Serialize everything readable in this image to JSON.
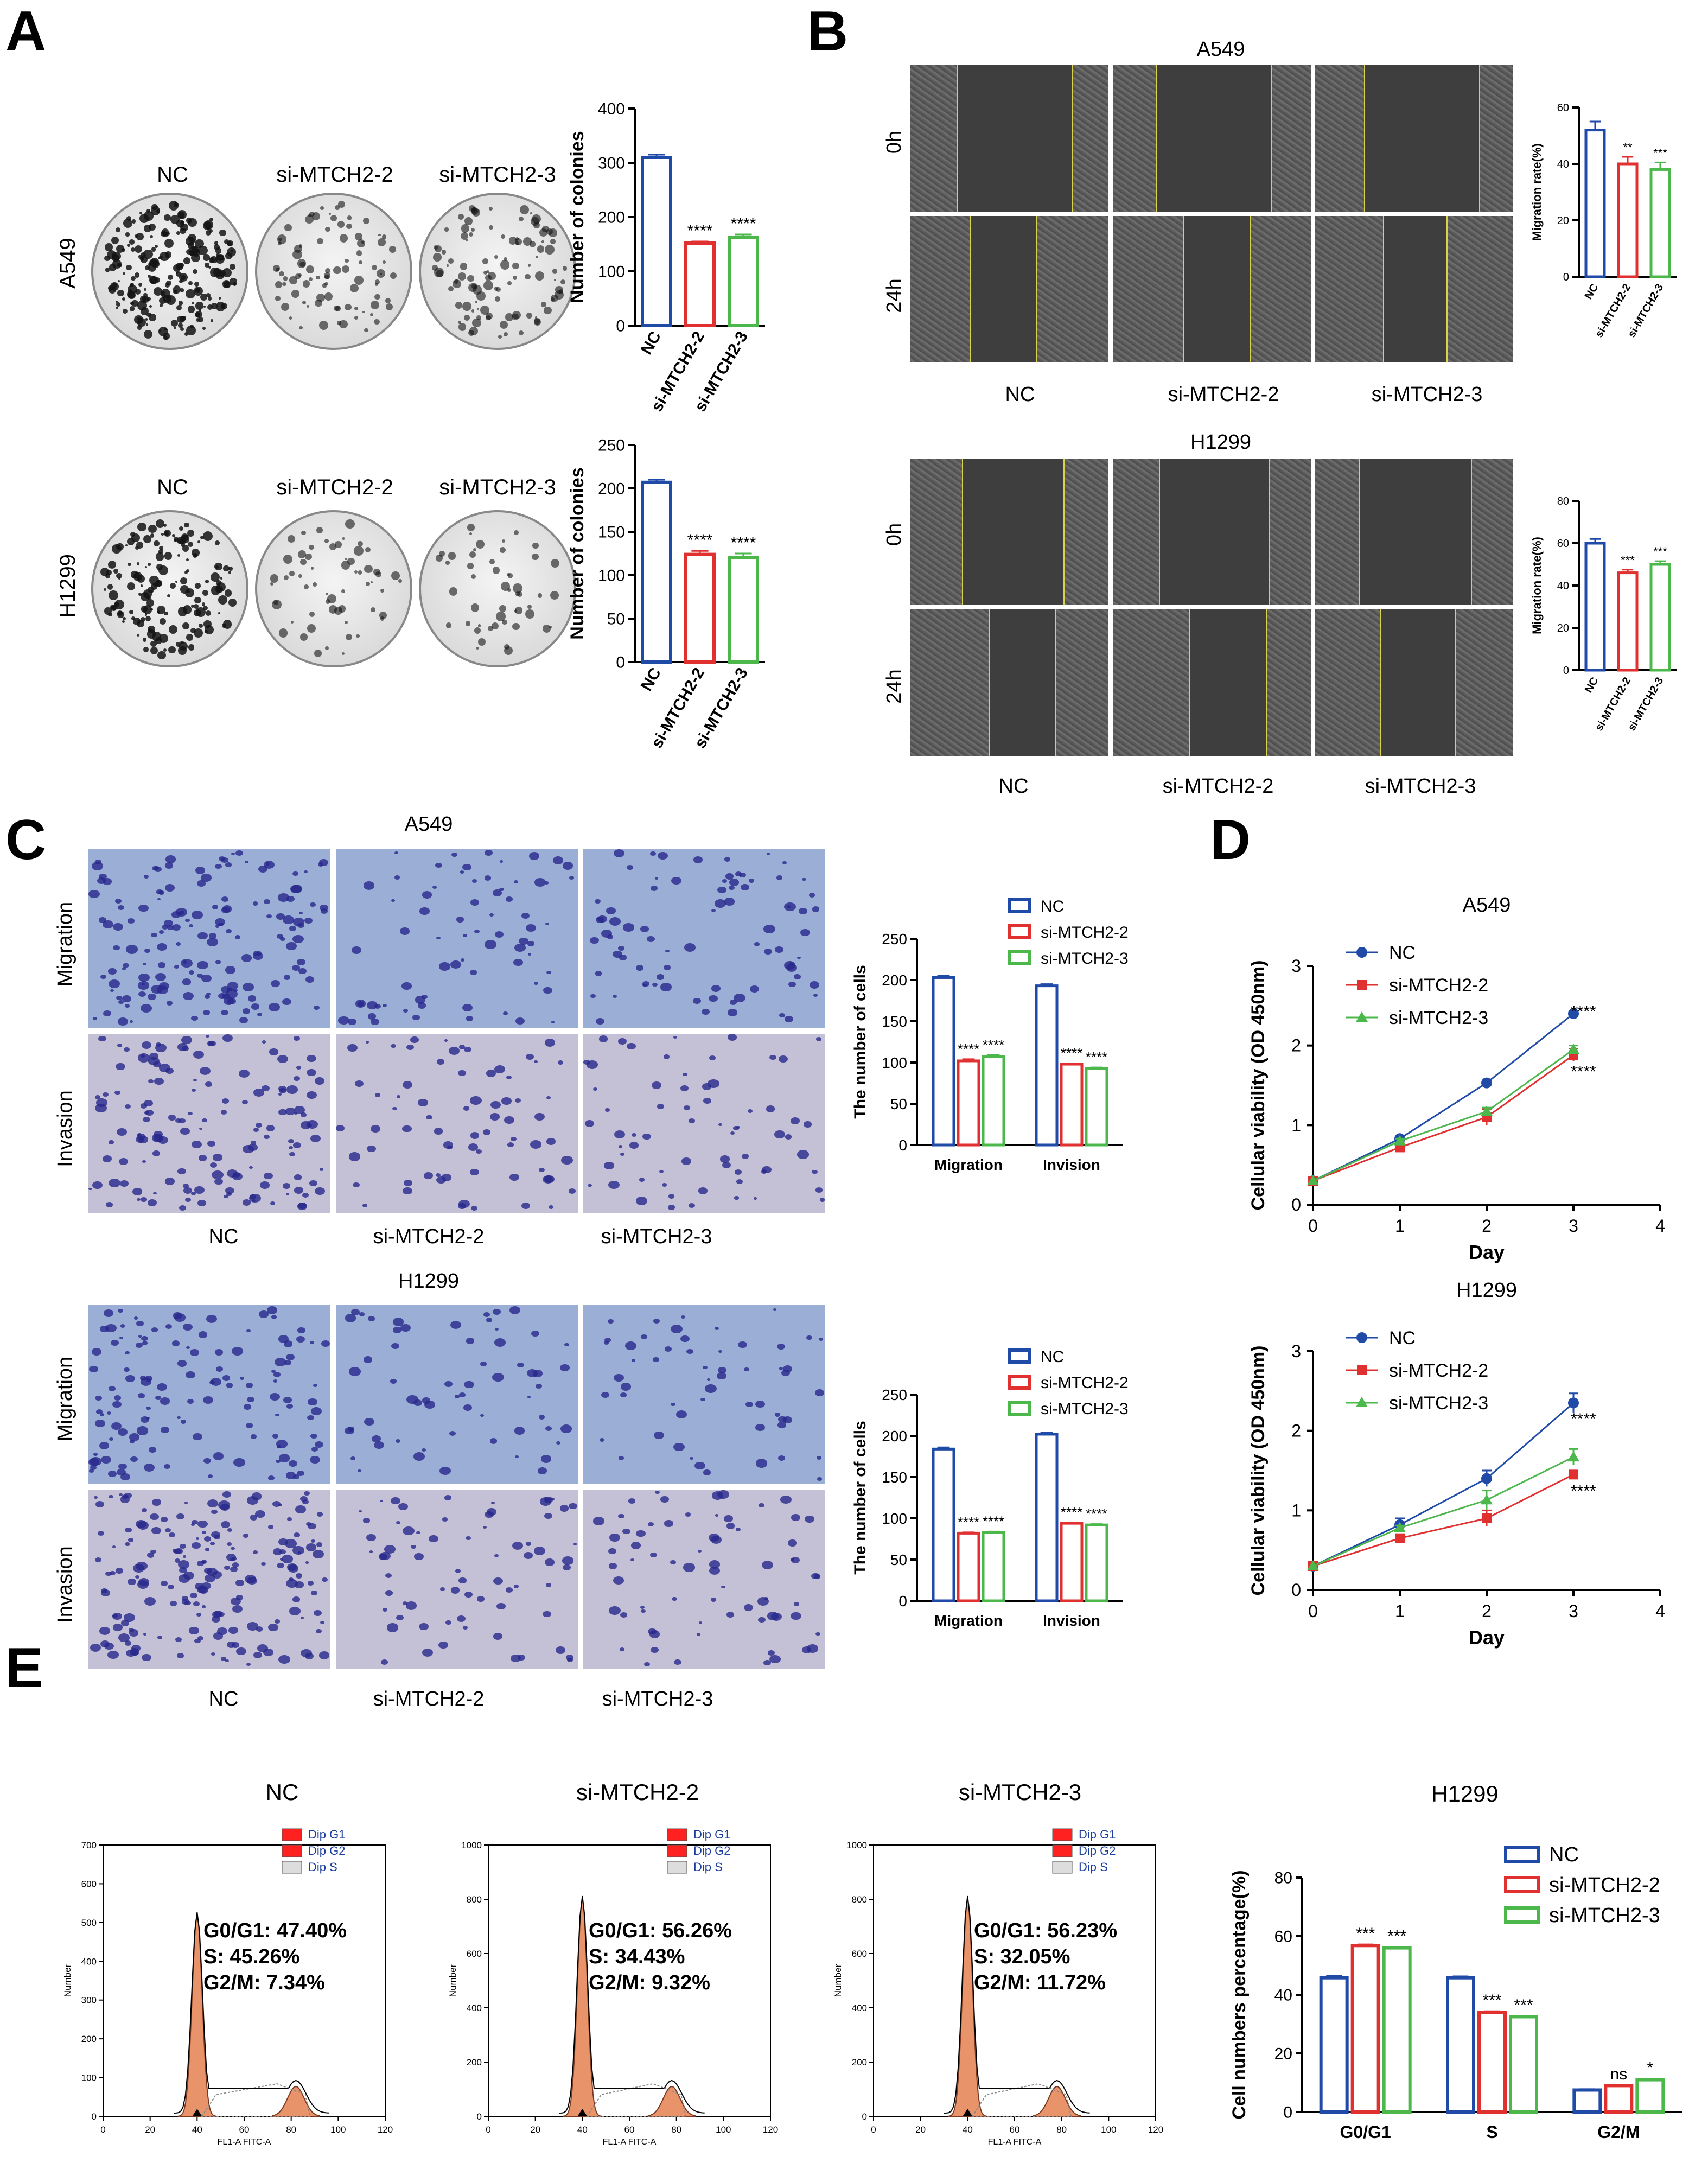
{
  "panels": {
    "A": "A",
    "B": "B",
    "C": "C",
    "D": "D",
    "E": "E"
  },
  "colors": {
    "nc": "#1f4aa8",
    "si2": "#e03030",
    "si3": "#4cb84c",
    "flow_fill": "#e8936a",
    "dip_red": "#ff2020"
  },
  "groups": [
    "NC",
    "si-MTCH2-2",
    "si-MTCH2-3"
  ],
  "cell_lines": [
    "A549",
    "H1299"
  ],
  "panel_a": {
    "rows": [
      {
        "label": "A549",
        "chart_index": 0
      },
      {
        "label": "H1299",
        "chart_index": 1
      }
    ]
  },
  "panel_b": {
    "titles": [
      "A549",
      "H1299"
    ],
    "time_labels": [
      "0h",
      "24h"
    ]
  },
  "panel_c": {
    "titles": [
      "A549",
      "H1299"
    ],
    "row_labels": [
      "Migration",
      "Invasion"
    ]
  },
  "panel_e": {
    "titles": [
      "NC",
      "si-MTCH2-2",
      "si-MTCH2-3"
    ],
    "legend": [
      "Dip G1",
      "Dip G2",
      "Dip S"
    ],
    "xlabel": "FL1-A FITC-A",
    "ylabel": "Number",
    "stats": [
      {
        "g0g1": "G0/G1: 47.40%",
        "s": "S: 45.26%",
        "g2m": "G2/M: 7.34%"
      },
      {
        "g0g1": "G0/G1: 56.26%",
        "s": "S: 34.43%",
        "g2m": "G2/M: 9.32%"
      },
      {
        "g0g1": "G0/G1: 56.23%",
        "s": "S: 32.05%",
        "g2m": "G2/M: 11.72%"
      }
    ],
    "x_ticks": [
      "0",
      "20",
      "40",
      "60",
      "80",
      "100",
      "120"
    ],
    "y_ticks_nc": [
      "0",
      "100",
      "200",
      "300",
      "400",
      "500",
      "600",
      "700"
    ],
    "y_ticks_si": [
      "0",
      "200",
      "400",
      "600",
      "800",
      "1000"
    ]
  },
  "chart_data": [
    {
      "id": "A-A549",
      "type": "bar",
      "categories": [
        "NC",
        "si-MTCH2-2",
        "si-MTCH2-3"
      ],
      "values": [
        310,
        152,
        163
      ],
      "errors": [
        5,
        3,
        5
      ],
      "sig": [
        "",
        "****",
        "****"
      ],
      "ylabel": "Number of colonies",
      "ylim": [
        0,
        400
      ],
      "yticks": [
        0,
        100,
        200,
        300,
        400
      ]
    },
    {
      "id": "A-H1299",
      "type": "bar",
      "categories": [
        "NC",
        "si-MTCH2-2",
        "si-MTCH2-3"
      ],
      "values": [
        207,
        124,
        120
      ],
      "errors": [
        3,
        4,
        5
      ],
      "sig": [
        "",
        "****",
        "****"
      ],
      "ylabel": "Number of colonies",
      "ylim": [
        0,
        250
      ],
      "yticks": [
        0,
        50,
        100,
        150,
        200,
        250
      ]
    },
    {
      "id": "B-A549",
      "type": "bar",
      "categories": [
        "NC",
        "si-MTCH2-2",
        "si-MTCH2-3"
      ],
      "values": [
        52,
        40,
        38
      ],
      "errors": [
        3,
        2.5,
        2.5
      ],
      "sig": [
        "",
        "**",
        "***"
      ],
      "ylabel": "Migration rate(%)",
      "ylim": [
        0,
        60
      ],
      "yticks": [
        0,
        20,
        40,
        60
      ]
    },
    {
      "id": "B-H1299",
      "type": "bar",
      "categories": [
        "NC",
        "si-MTCH2-2",
        "si-MTCH2-3"
      ],
      "values": [
        60,
        46,
        50
      ],
      "errors": [
        2,
        1.5,
        1.5
      ],
      "sig": [
        "",
        "***",
        "***"
      ],
      "ylabel": "Migration rate(%)",
      "ylim": [
        0,
        80
      ],
      "yticks": [
        0,
        20,
        40,
        60,
        80
      ]
    },
    {
      "id": "C-A549",
      "type": "bar",
      "categories": [
        "Migration",
        "Invision"
      ],
      "series": [
        {
          "name": "NC",
          "values": [
            203,
            193
          ],
          "errors": [
            2,
            2
          ]
        },
        {
          "name": "si-MTCH2-2",
          "values": [
            102,
            98
          ],
          "errors": [
            2,
            1
          ]
        },
        {
          "name": "si-MTCH2-3",
          "values": [
            107,
            93
          ],
          "errors": [
            2,
            1
          ]
        }
      ],
      "sig": [
        [
          "",
          "****",
          "****"
        ],
        [
          "",
          "****",
          "****"
        ]
      ],
      "ylabel": "The number of cells",
      "ylim": [
        0,
        250
      ],
      "yticks": [
        0,
        50,
        100,
        150,
        200,
        250
      ]
    },
    {
      "id": "C-H1299",
      "type": "bar",
      "categories": [
        "Migration",
        "Invision"
      ],
      "series": [
        {
          "name": "NC",
          "values": [
            184,
            202
          ],
          "errors": [
            2,
            2
          ]
        },
        {
          "name": "si-MTCH2-2",
          "values": [
            82,
            94
          ],
          "errors": [
            1,
            1
          ]
        },
        {
          "name": "si-MTCH2-3",
          "values": [
            83,
            92
          ],
          "errors": [
            1,
            1
          ]
        }
      ],
      "sig": [
        [
          "",
          "****",
          "****"
        ],
        [
          "",
          "****",
          "****"
        ]
      ],
      "ylabel": "The number of cells",
      "ylim": [
        0,
        250
      ],
      "yticks": [
        0,
        50,
        100,
        150,
        200,
        250
      ]
    },
    {
      "id": "D-A549",
      "type": "line",
      "title": "A549",
      "x": [
        0,
        1,
        2,
        3
      ],
      "series": [
        {
          "name": "NC",
          "values": [
            0.3,
            0.83,
            1.53,
            2.4
          ],
          "errors": [
            0,
            0.03,
            0.03,
            0.03
          ]
        },
        {
          "name": "si-MTCH2-2",
          "values": [
            0.3,
            0.72,
            1.1,
            1.88
          ],
          "errors": [
            0,
            0.03,
            0.1,
            0.08
          ]
        },
        {
          "name": "si-MTCH2-3",
          "values": [
            0.3,
            0.8,
            1.17,
            1.95
          ],
          "errors": [
            0,
            0.03,
            0.05,
            0.05
          ]
        }
      ],
      "sig": [
        "****",
        "****"
      ],
      "xlabel": "Day",
      "ylabel": "Cellular viability (OD 450nm)",
      "xlim": [
        0,
        4
      ],
      "ylim": [
        0,
        3
      ],
      "xticks": [
        0,
        1,
        2,
        3,
        4
      ],
      "yticks": [
        0,
        1,
        2,
        3
      ]
    },
    {
      "id": "D-H1299",
      "type": "line",
      "title": "H1299",
      "x": [
        0,
        1,
        2,
        3
      ],
      "series": [
        {
          "name": "NC",
          "values": [
            0.3,
            0.82,
            1.4,
            2.35
          ],
          "errors": [
            0,
            0.08,
            0.1,
            0.12
          ]
        },
        {
          "name": "si-MTCH2-2",
          "values": [
            0.3,
            0.65,
            0.9,
            1.45
          ],
          "errors": [
            0,
            0.03,
            0.1,
            0.04
          ]
        },
        {
          "name": "si-MTCH2-3",
          "values": [
            0.3,
            0.78,
            1.13,
            1.67
          ],
          "errors": [
            0,
            0.03,
            0.12,
            0.1
          ]
        }
      ],
      "sig": [
        "****",
        "****"
      ],
      "xlabel": "Day",
      "ylabel": "Cellular viability (OD 450nm)",
      "xlim": [
        0,
        4
      ],
      "ylim": [
        0,
        3
      ],
      "xticks": [
        0,
        1,
        2,
        3,
        4
      ],
      "yticks": [
        0,
        1,
        2,
        3
      ]
    },
    {
      "id": "E-H1299",
      "type": "bar",
      "title": "H1299",
      "categories": [
        "G0/G1",
        "S",
        "G2/M"
      ],
      "series": [
        {
          "name": "NC",
          "values": [
            45.8,
            45.8,
            7.5
          ],
          "errors": [
            0.6,
            0.5,
            0.3
          ]
        },
        {
          "name": "si-MTCH2-2",
          "values": [
            56.8,
            34.0,
            9.0
          ],
          "errors": [
            0.4,
            0.4,
            0.3
          ]
        },
        {
          "name": "si-MTCH2-3",
          "values": [
            56.0,
            32.5,
            11.0
          ],
          "errors": [
            0.4,
            0.3,
            0.4
          ]
        }
      ],
      "sig": [
        [
          "",
          "***",
          "***"
        ],
        [
          "",
          "***",
          "***"
        ],
        [
          "",
          "ns",
          "*"
        ]
      ],
      "ylabel": "Cell numbers percentage(%)",
      "ylim": [
        0,
        80
      ],
      "yticks": [
        0,
        20,
        40,
        60,
        80
      ]
    }
  ]
}
